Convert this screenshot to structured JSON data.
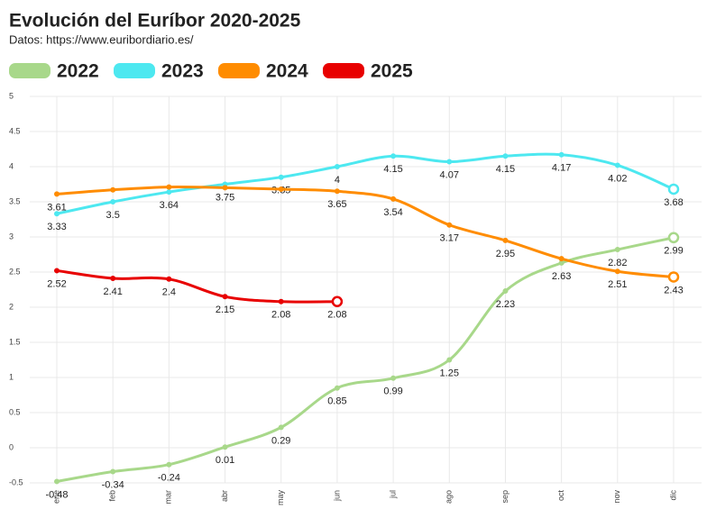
{
  "chart_data": {
    "type": "line",
    "title": "Evolución del Euríbor 2020-2025",
    "subtitle": "Datos: https://www.euribordiario.es/",
    "categories": [
      "ene",
      "feb",
      "mar",
      "abr",
      "may",
      "jun",
      "jul",
      "ago",
      "sep",
      "oct",
      "nov",
      "dic"
    ],
    "series": [
      {
        "name": "2022",
        "color": "#a8d88a",
        "values": [
          -0.48,
          -0.34,
          -0.24,
          0.01,
          0.29,
          0.85,
          0.99,
          1.25,
          2.23,
          2.63,
          2.82,
          2.99
        ]
      },
      {
        "name": "2023",
        "color": "#4de8f0",
        "values": [
          3.33,
          3.5,
          3.64,
          3.75,
          3.85,
          4,
          4.15,
          4.07,
          4.15,
          4.17,
          4.02,
          3.68
        ]
      },
      {
        "name": "2024",
        "color": "#ff8c00",
        "values": [
          3.61,
          3.67,
          3.71,
          3.7,
          3.68,
          3.65,
          3.54,
          3.17,
          2.95,
          2.69,
          2.51,
          2.43
        ],
        "value_labels": [
          "3.61",
          null,
          null,
          null,
          null,
          "3.65",
          "3.54",
          "3.17",
          "2.95",
          null,
          "2.51",
          "2.43"
        ]
      },
      {
        "name": "2025",
        "color": "#e80000",
        "values": [
          2.52,
          2.41,
          2.4,
          2.15,
          2.08,
          2.08,
          null,
          null,
          null,
          null,
          null,
          null
        ]
      }
    ],
    "ylim": [
      -0.5,
      5
    ],
    "yticks": [
      -0.5,
      0,
      0.5,
      1,
      1.5,
      2,
      2.5,
      3,
      3.5,
      4,
      4.5,
      5
    ],
    "grid": true
  }
}
